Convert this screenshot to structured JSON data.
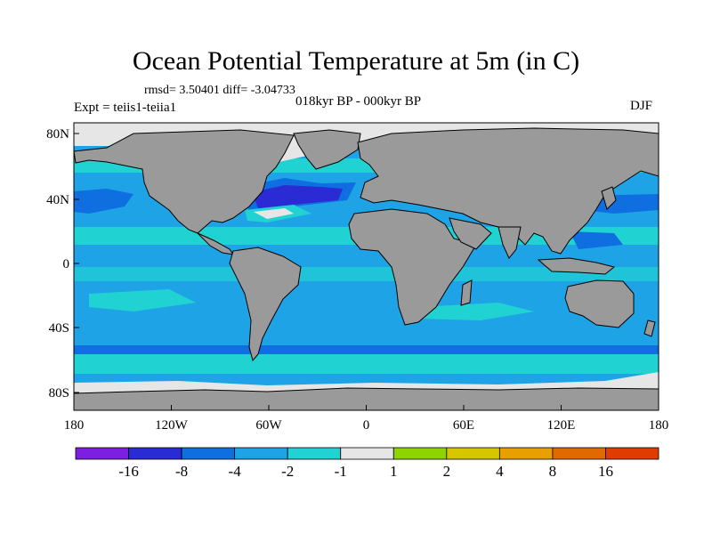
{
  "title": "Ocean Potential Temperature at 5m (in C)",
  "stats": "rmsd= 3.50401 diff= -3.04733",
  "expt": "Expt = teiis1-teiia1",
  "period": "018kyr BP - 000kyr BP",
  "season": "DJF",
  "lat_ticks": [
    "80N",
    "40N",
    "0",
    "40S",
    "80S"
  ],
  "lon_ticks": [
    "180",
    "120W",
    "60W",
    "0",
    "60E",
    "120E",
    "180"
  ],
  "colorbar": {
    "colors": [
      "#7d1fe0",
      "#2b2bd6",
      "#0f6fe0",
      "#1ea3e6",
      "#21d2d2",
      "#e6e6e6",
      "#8fd400",
      "#d6c600",
      "#e8a000",
      "#e06a00",
      "#e03c00"
    ],
    "labels": [
      "-16",
      "-8",
      "-4",
      "-2",
      "-1",
      "1",
      "2",
      "4",
      "8",
      "16"
    ]
  },
  "colors": {
    "land": "#9a9a9a",
    "ocean_base": "#1ea3e6",
    "ocean_light": "#21d2d2",
    "ocean_dark": "#0f6fe0",
    "ocean_deep": "#2b2bd6",
    "sea_ice": "#e6e6e6"
  }
}
